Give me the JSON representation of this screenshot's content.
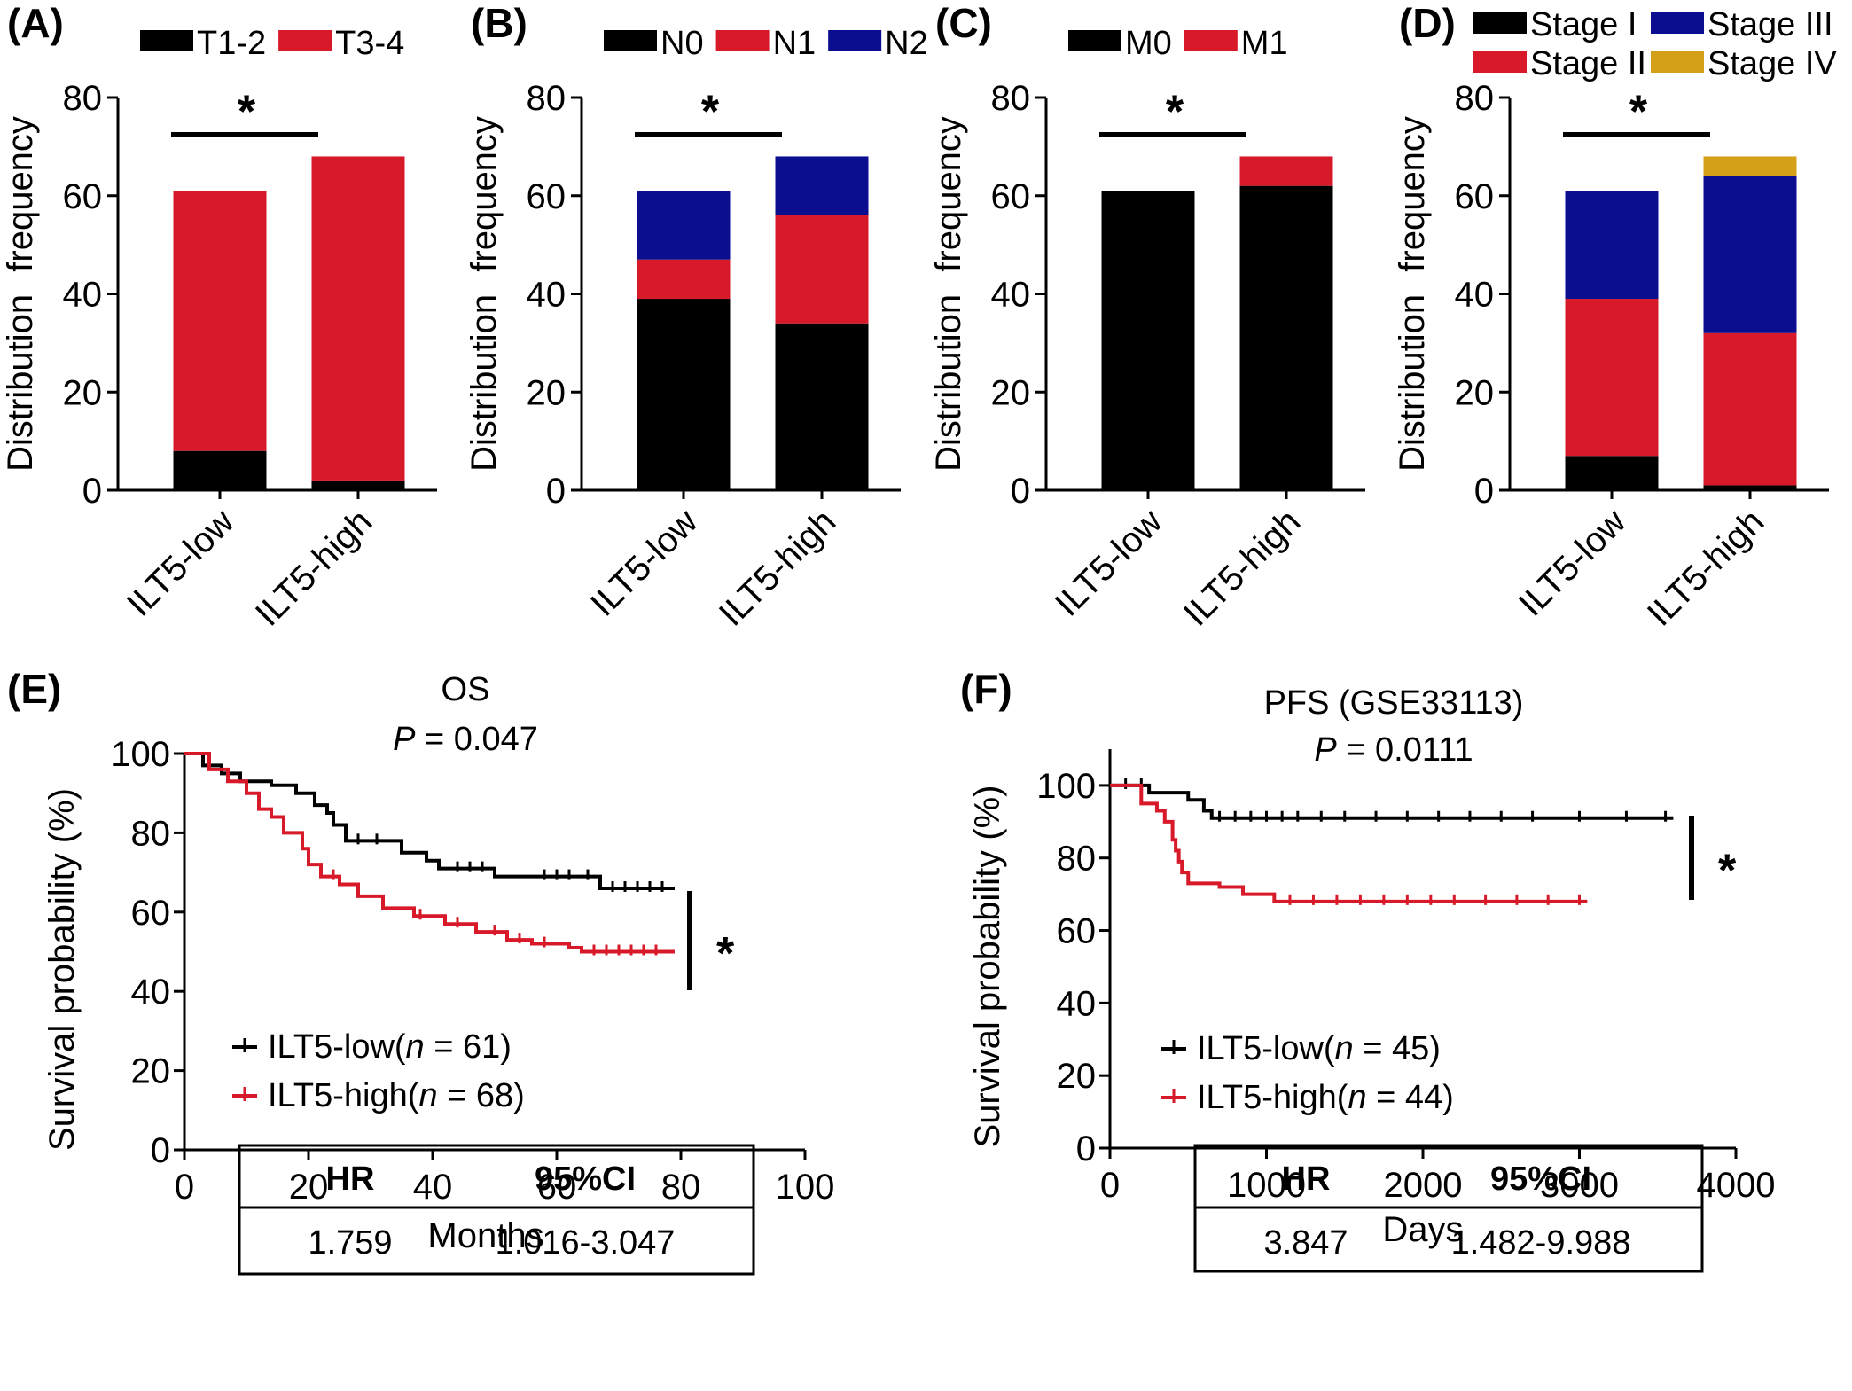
{
  "colors": {
    "black": "#000000",
    "red": "#d7192a",
    "blue": "#0b0e8f",
    "gold": "#d4a017"
  },
  "chart_data": [
    {
      "id": "A",
      "panel_label": "(A)",
      "type": "bar",
      "stacked": true,
      "categories": [
        "ILT5-low",
        "ILT5-high"
      ],
      "ylabel": "Distribution frequency",
      "ylim": [
        0,
        80
      ],
      "yticks": [
        "0",
        "20",
        "40",
        "60",
        "80"
      ],
      "significance": "*",
      "legend_placement": "top",
      "series": [
        {
          "name": "T1-2",
          "color": "#000000",
          "values": [
            8,
            2
          ]
        },
        {
          "name": "T3-4",
          "color": "#d7192a",
          "values": [
            53,
            66
          ]
        }
      ]
    },
    {
      "id": "B",
      "panel_label": "(B)",
      "type": "bar",
      "stacked": true,
      "categories": [
        "ILT5-low",
        "ILT5-high"
      ],
      "ylabel": "Distribution frequency",
      "ylim": [
        0,
        80
      ],
      "yticks": [
        "0",
        "20",
        "40",
        "60",
        "80"
      ],
      "significance": "*",
      "legend_placement": "top",
      "series": [
        {
          "name": "N0",
          "color": "#000000",
          "values": [
            39,
            34
          ]
        },
        {
          "name": "N1",
          "color": "#d7192a",
          "values": [
            8,
            22
          ]
        },
        {
          "name": "N2",
          "color": "#0b0e8f",
          "values": [
            14,
            12
          ]
        }
      ]
    },
    {
      "id": "C",
      "panel_label": "(C)",
      "type": "bar",
      "stacked": true,
      "categories": [
        "ILT5-low",
        "ILT5-high"
      ],
      "ylabel": "Distribution frequency",
      "ylim": [
        0,
        80
      ],
      "yticks": [
        "0",
        "20",
        "40",
        "60",
        "80"
      ],
      "significance": "*",
      "legend_placement": "top",
      "series": [
        {
          "name": "M0",
          "color": "#000000",
          "values": [
            61,
            62
          ]
        },
        {
          "name": "M1",
          "color": "#d7192a",
          "values": [
            0,
            6
          ]
        }
      ]
    },
    {
      "id": "D",
      "panel_label": "(D)",
      "type": "bar",
      "stacked": true,
      "categories": [
        "ILT5-low",
        "ILT5-high"
      ],
      "ylabel": "Distribution frequency",
      "ylim": [
        0,
        80
      ],
      "yticks": [
        "0",
        "20",
        "40",
        "60",
        "80"
      ],
      "significance": "*",
      "legend_placement": "top",
      "series": [
        {
          "name": "Stage I",
          "color": "#000000",
          "values": [
            7,
            1
          ]
        },
        {
          "name": "Stage II",
          "color": "#d7192a",
          "values": [
            32,
            31
          ]
        },
        {
          "name": "Stage III",
          "color": "#0b0e8f",
          "values": [
            22,
            32
          ]
        },
        {
          "name": "Stage IV",
          "color": "#d4a017",
          "values": [
            0,
            4
          ]
        }
      ]
    },
    {
      "id": "E",
      "panel_label": "(E)",
      "type": "line",
      "subtype": "kaplan-meier",
      "title": "OS",
      "p_prefix": "P",
      "p_value": "= 0.047",
      "xlabel": "Months",
      "ylabel": "Survival probability (%)",
      "xlim": [
        0,
        100
      ],
      "ylim": [
        0,
        100
      ],
      "xticks": [
        0,
        20,
        40,
        60,
        80,
        100
      ],
      "yticks": [
        0,
        20,
        40,
        60,
        80,
        100
      ],
      "significance": "*",
      "legend_placement": "bottom-left",
      "series": [
        {
          "name": "ILT5-low",
          "n": "61",
          "color": "#000000",
          "x": [
            0,
            3,
            6,
            9,
            14,
            18,
            21,
            23,
            24,
            26,
            30,
            35,
            39,
            41,
            50,
            55,
            63,
            67,
            79
          ],
          "y": [
            100,
            97,
            95,
            93,
            92,
            90,
            87,
            85,
            82,
            78,
            78,
            75,
            73,
            71,
            69,
            69,
            69,
            66,
            66
          ],
          "censor_x": [
            28,
            31,
            44,
            46,
            48,
            58,
            60,
            62,
            65,
            69,
            71,
            73,
            75,
            77
          ]
        },
        {
          "name": "ILT5-high",
          "n": "68",
          "color": "#d7192a",
          "x": [
            0,
            4,
            7,
            10,
            12,
            14,
            16,
            19,
            20,
            22,
            25,
            28,
            32,
            37,
            42,
            47,
            52,
            56,
            62,
            64,
            79
          ],
          "y": [
            100,
            96,
            93,
            90,
            86,
            84,
            80,
            76,
            72,
            69,
            67,
            64,
            61,
            59,
            57,
            55,
            53,
            52,
            51,
            50,
            50
          ],
          "censor_x": [
            24,
            38,
            44,
            50,
            54,
            58,
            66,
            68,
            70,
            72,
            74,
            76
          ]
        }
      ],
      "table": {
        "headers": [
          "HR",
          "95%CI"
        ],
        "row": [
          "1.759",
          "1.016-3.047"
        ]
      }
    },
    {
      "id": "F",
      "panel_label": "(F)",
      "type": "line",
      "subtype": "kaplan-meier",
      "title": "PFS (GSE33113)",
      "p_prefix": "P",
      "p_value": "= 0.0111",
      "xlabel": "Days",
      "ylabel": "Survival probability (%)",
      "xlim": [
        0,
        4000
      ],
      "ylim": [
        0,
        110
      ],
      "xticks": [
        0,
        1000,
        2000,
        3000,
        4000
      ],
      "yticks": [
        0,
        20,
        40,
        60,
        80,
        100
      ],
      "significance": "*",
      "legend_placement": "bottom-left",
      "series": [
        {
          "name": "ILT5-low",
          "n": "45",
          "color": "#000000",
          "x": [
            0,
            250,
            500,
            600,
            650,
            3600
          ],
          "y": [
            100,
            98,
            96,
            93,
            91,
            91
          ],
          "censor_x": [
            100,
            200,
            700,
            800,
            900,
            1000,
            1100,
            1200,
            1350,
            1500,
            1700,
            1900,
            2100,
            2300,
            2500,
            2700,
            3000,
            3300,
            3550
          ]
        },
        {
          "name": "ILT5-high",
          "n": "44",
          "color": "#d7192a",
          "x": [
            0,
            200,
            300,
            350,
            400,
            420,
            440,
            460,
            500,
            700,
            850,
            1050,
            3050
          ],
          "y": [
            100,
            95,
            93,
            90,
            85,
            82,
            79,
            76,
            73,
            72,
            70,
            68,
            68
          ],
          "censor_x": [
            1150,
            1300,
            1450,
            1600,
            1750,
            1900,
            2050,
            2200,
            2400,
            2600,
            2800,
            3000
          ]
        }
      ],
      "table": {
        "headers": [
          "HR",
          "95%CI"
        ],
        "row": [
          "3.847",
          "1.482-9.988"
        ]
      }
    }
  ]
}
